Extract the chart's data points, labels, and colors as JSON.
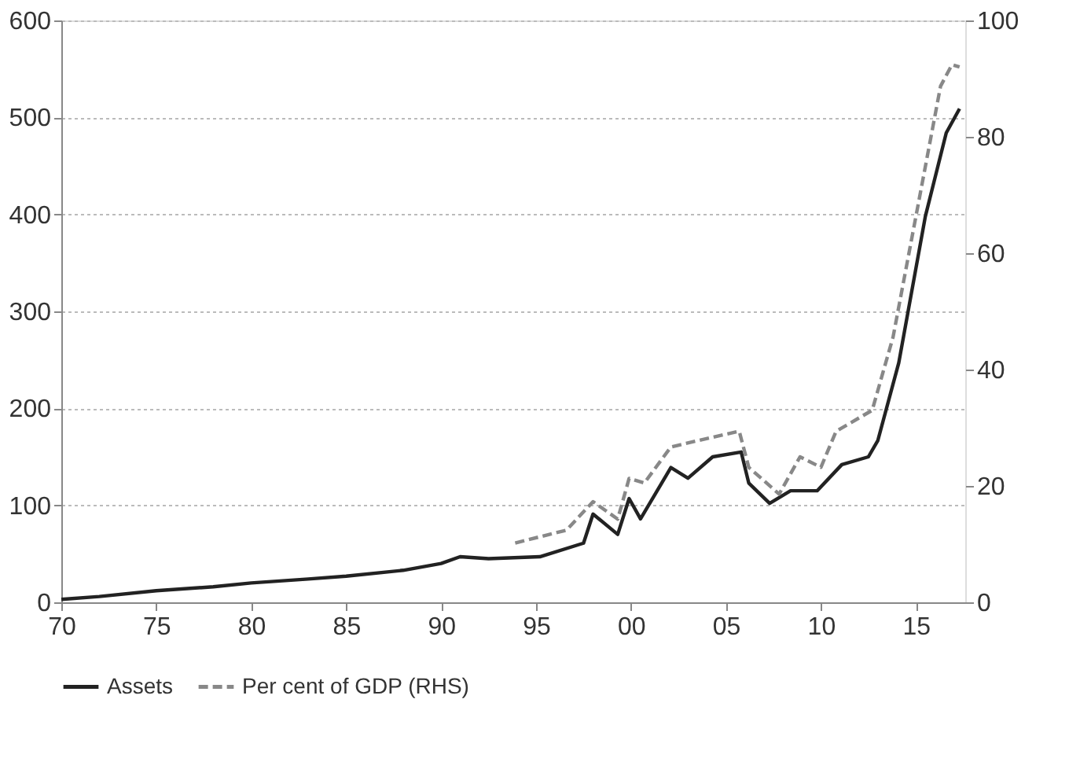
{
  "chart_data": {
    "type": "line",
    "xlim": [
      1970,
      2017.6
    ],
    "xticks": [
      {
        "value": 1970,
        "label": "70"
      },
      {
        "value": 1975,
        "label": "75"
      },
      {
        "value": 1980,
        "label": "80"
      },
      {
        "value": 1985,
        "label": "85"
      },
      {
        "value": 1990,
        "label": "90"
      },
      {
        "value": 1995,
        "label": "95"
      },
      {
        "value": 2000,
        "label": "00"
      },
      {
        "value": 2005,
        "label": "05"
      },
      {
        "value": 2010,
        "label": "10"
      },
      {
        "value": 2015,
        "label": "15"
      }
    ],
    "ylim": [
      0,
      600
    ],
    "yticks": [
      0,
      100,
      200,
      300,
      400,
      500,
      600
    ],
    "y2lim": [
      0,
      100
    ],
    "y2ticks": [
      0,
      20,
      40,
      60,
      80,
      100
    ],
    "grid": "y",
    "legend": "bottom",
    "series": [
      {
        "name": "Assets",
        "color": "#222222",
        "line_style": "solid",
        "x": [
          1970,
          1972,
          1975,
          1978,
          1980,
          1983,
          1985,
          1988,
          1990,
          1991,
          1992.5,
          1995.2,
          1997.5,
          1998,
          1999.3,
          1999.9,
          2000.5,
          2002.1,
          2003,
          2004.3,
          2005.8,
          2006.2,
          2007.3,
          2008.4,
          2009.8,
          2011.1,
          2012.5,
          2013,
          2014.1,
          2015.5,
          2016.6,
          2017.3
        ],
        "values": [
          3,
          6,
          12,
          16,
          20,
          24,
          27,
          33,
          40,
          47,
          45,
          47,
          61,
          91,
          70,
          107,
          86,
          139,
          128,
          150,
          155,
          123,
          102,
          115,
          115,
          142,
          150,
          167,
          247,
          398,
          484,
          509
        ]
      },
      {
        "name": "Per cent of GDP (RHS)",
        "color": "#888888",
        "line_style": "dashed",
        "axis": "y2",
        "x": [
          1993.9,
          1996.6,
          1998,
          1999.3,
          1999.9,
          2000.7,
          2002.1,
          2003.4,
          2005.7,
          2006.2,
          2007.8,
          2008.9,
          2010,
          2010.8,
          2012.7,
          2013.8,
          2015.1,
          2016.3,
          2016.9,
          2017.3
        ],
        "values": [
          10.2,
          12.4,
          17.3,
          14.3,
          21.3,
          20.5,
          26.7,
          27.7,
          29.4,
          23.2,
          18.6,
          25,
          23.2,
          29.4,
          33,
          45.6,
          68,
          88.7,
          92.4,
          92
        ]
      }
    ]
  }
}
